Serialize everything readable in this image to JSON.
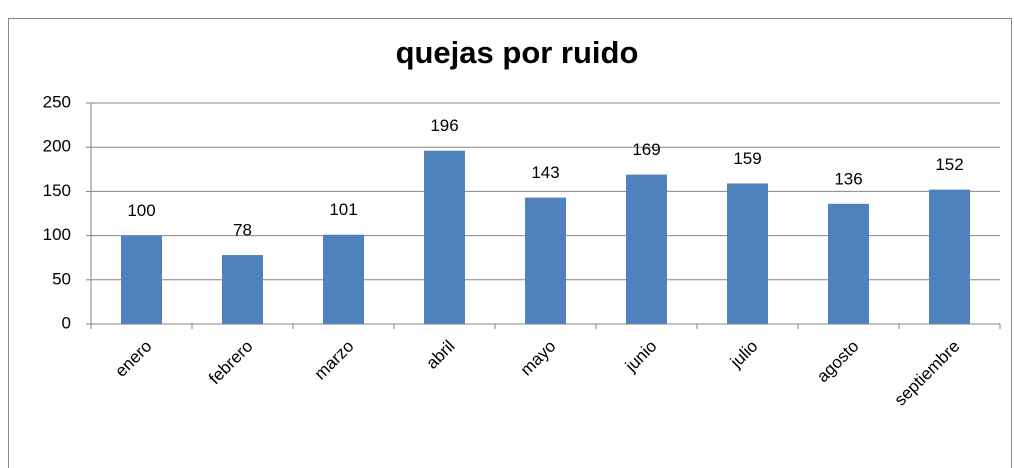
{
  "chart_data": {
    "type": "bar",
    "title": "quejas por ruido",
    "categories": [
      "enero",
      "febrero",
      "marzo",
      "abril",
      "mayo",
      "junio",
      "julio",
      "agosto",
      "septiembre"
    ],
    "values": [
      100,
      78,
      101,
      196,
      143,
      169,
      159,
      136,
      152
    ],
    "color": "#4f81bd",
    "ylim": [
      0,
      250
    ],
    "yticks": [
      0,
      50,
      100,
      150,
      200,
      250
    ],
    "grid": true
  }
}
